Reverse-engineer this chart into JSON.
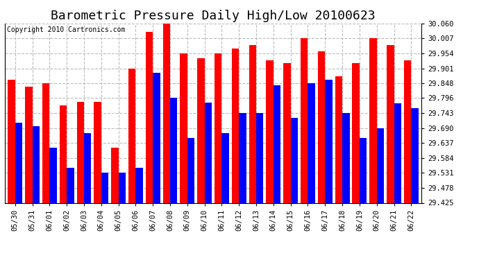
{
  "title": "Barometric Pressure Daily High/Low 20100623",
  "copyright": "Copyright 2010 Cartronics.com",
  "dates": [
    "05/30",
    "05/31",
    "06/01",
    "06/02",
    "06/03",
    "06/04",
    "06/05",
    "06/06",
    "06/07",
    "06/08",
    "06/09",
    "06/10",
    "06/11",
    "06/12",
    "06/13",
    "06/14",
    "06/15",
    "06/16",
    "06/17",
    "06/18",
    "06/19",
    "06/20",
    "06/21",
    "06/22"
  ],
  "highs": [
    29.86,
    29.836,
    29.848,
    29.77,
    29.783,
    29.783,
    29.619,
    29.901,
    30.03,
    30.06,
    29.954,
    29.936,
    29.954,
    29.971,
    29.983,
    29.93,
    29.919,
    30.007,
    29.96,
    29.872,
    29.919,
    30.007,
    29.983,
    29.93
  ],
  "lows": [
    29.708,
    29.696,
    29.619,
    29.549,
    29.672,
    29.531,
    29.531,
    29.549,
    29.884,
    29.796,
    29.655,
    29.779,
    29.672,
    29.743,
    29.743,
    29.84,
    29.725,
    29.849,
    29.86,
    29.743,
    29.655,
    29.69,
    29.778,
    29.76
  ],
  "bar_high_color": "#ff0000",
  "bar_low_color": "#0000ff",
  "background_color": "#ffffff",
  "plot_bg_color": "#ffffff",
  "grid_color": "#bbbbbb",
  "ylim_min": 29.425,
  "ylim_max": 30.06,
  "yticks": [
    29.425,
    29.478,
    29.531,
    29.584,
    29.637,
    29.69,
    29.743,
    29.796,
    29.848,
    29.901,
    29.954,
    30.007,
    30.06
  ],
  "title_fontsize": 13,
  "copyright_fontsize": 7,
  "tick_fontsize": 7.5,
  "bar_width": 0.42
}
